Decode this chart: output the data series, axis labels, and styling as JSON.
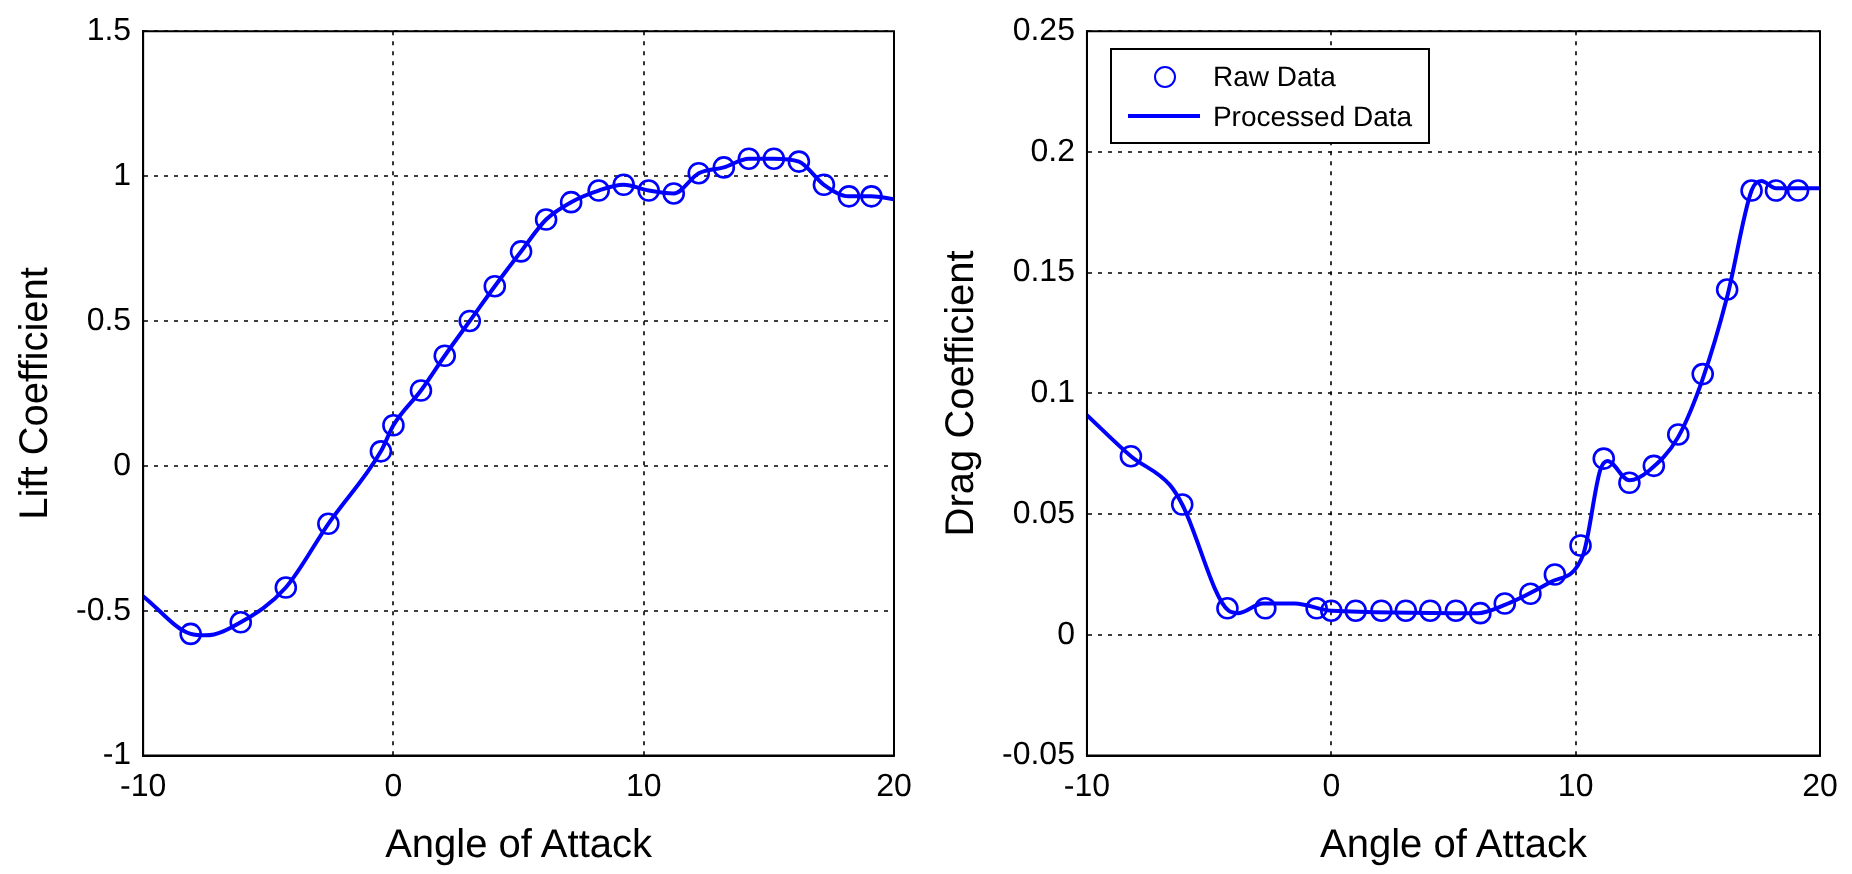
{
  "chart_data": [
    {
      "type": "line",
      "xlabel": "Angle of Attack",
      "ylabel": "Lift Coefficient",
      "xlim": [
        -10,
        20
      ],
      "xticks": [
        -10,
        0,
        10,
        20
      ],
      "ylim": [
        -1,
        1.5
      ],
      "yticks": [
        -1,
        -0.5,
        0,
        0.5,
        1,
        1.5
      ],
      "grid": true,
      "legend": false,
      "series": [
        {
          "type": "scatter",
          "marker": "circle",
          "color": "#0000ff",
          "x": [
            -8.1,
            -6.1,
            -4.3,
            -2.6,
            -0.5,
            0,
            1.1,
            2.05,
            3.05,
            4.05,
            5.1,
            6.1,
            7.1,
            8.2,
            9.2,
            10.2,
            11.2,
            12.2,
            13.2,
            14.2,
            15.2,
            16.2,
            17.2,
            18.2,
            19.1
          ],
          "values": [
            -0.58,
            -0.54,
            -0.42,
            -0.2,
            0.05,
            0.14,
            0.26,
            0.38,
            0.5,
            0.62,
            0.74,
            0.85,
            0.91,
            0.95,
            0.97,
            0.95,
            0.94,
            1.01,
            1.03,
            1.06,
            1.06,
            1.05,
            0.97,
            0.93,
            0.93
          ]
        },
        {
          "type": "line",
          "marker": "none",
          "color": "#0000ff",
          "x": [
            -10,
            -8.1,
            -7.5,
            -6.1,
            -4.3,
            -2.6,
            -0.5,
            0,
            1.1,
            2.05,
            3.05,
            4.05,
            5.1,
            6.1,
            7.1,
            8.2,
            9.2,
            10.2,
            11.2,
            12.2,
            13.2,
            14.2,
            15.2,
            16.2,
            17.2,
            18.2,
            19.1,
            20
          ],
          "values": [
            -0.45,
            -0.58,
            -0.585,
            -0.54,
            -0.42,
            -0.2,
            0.05,
            0.14,
            0.26,
            0.38,
            0.5,
            0.62,
            0.74,
            0.85,
            0.91,
            0.95,
            0.97,
            0.95,
            0.94,
            1.01,
            1.03,
            1.06,
            1.06,
            1.05,
            0.97,
            0.93,
            0.93,
            0.92
          ]
        }
      ]
    },
    {
      "type": "line",
      "xlabel": "Angle of Attack",
      "ylabel": "Drag Coefficient",
      "xlim": [
        -10,
        20
      ],
      "xticks": [
        -10,
        0,
        10,
        20
      ],
      "ylim": [
        -0.05,
        0.25
      ],
      "yticks": [
        -0.05,
        0,
        0.05,
        0.1,
        0.15,
        0.2,
        0.25
      ],
      "grid": true,
      "legend": "top left",
      "series": [
        {
          "type": "scatter",
          "marker": "circle",
          "name": "Raw Data",
          "color": "#0000ff",
          "x": [
            -8.2,
            -6.1,
            -4.25,
            -2.7,
            -0.6,
            0,
            1,
            2.05,
            3.05,
            4.05,
            5.1,
            6.1,
            7.1,
            8.15,
            9.15,
            10.2,
            11.15,
            12.2,
            13.2,
            14.2,
            15.2,
            16.2,
            17.2,
            18.2,
            19.1
          ],
          "values": [
            0.074,
            0.054,
            0.011,
            0.011,
            0.011,
            0.01,
            0.01,
            0.01,
            0.01,
            0.01,
            0.01,
            0.009,
            0.013,
            0.017,
            0.025,
            0.037,
            0.073,
            0.063,
            0.07,
            0.083,
            0.108,
            0.143,
            0.184,
            0.184,
            0.184
          ]
        },
        {
          "type": "line",
          "marker": "none",
          "name": "Processed Data",
          "color": "#0000ff",
          "x": [
            -10,
            -8.2,
            -6.6,
            -6.1,
            -4.2,
            -3.8,
            -2.8,
            -1.5,
            0,
            6,
            7,
            9,
            10.3,
            11,
            11.3,
            12.2,
            13,
            14.2,
            15.2,
            16.2,
            17.2,
            17.6,
            18.2,
            20
          ],
          "values": [
            0.091,
            0.074,
            0.062,
            0.054,
            0.01,
            0.009,
            0.013,
            0.013,
            0.01,
            0.009,
            0.012,
            0.022,
            0.033,
            0.068,
            0.072,
            0.064,
            0.068,
            0.082,
            0.106,
            0.14,
            0.184,
            0.188,
            0.185,
            0.185
          ]
        }
      ]
    }
  ]
}
